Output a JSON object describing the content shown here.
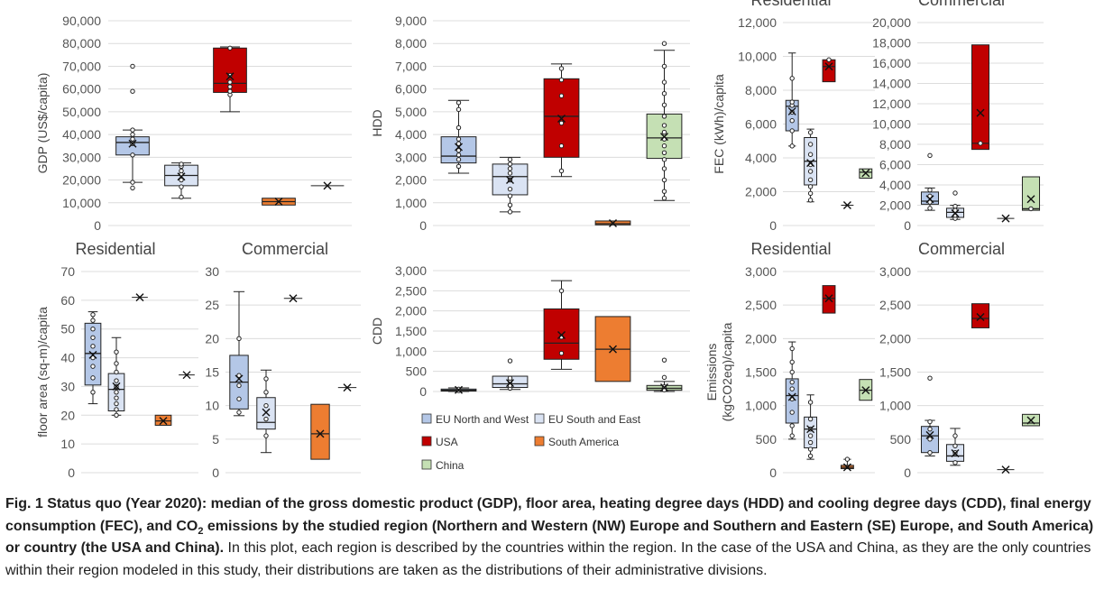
{
  "colors": {
    "EU_NW": "#b4c7e7",
    "EU_SE": "#dae3f3",
    "USA": "#c00000",
    "SA": "#ed7d31",
    "China": "#c5e0b4"
  },
  "legend": [
    {
      "key": "EU_NW",
      "label": "EU North and West"
    },
    {
      "key": "EU_SE",
      "label": "EU South and East"
    },
    {
      "key": "USA",
      "label": "USA"
    },
    {
      "key": "SA",
      "label": "South America"
    },
    {
      "key": "China",
      "label": "China"
    }
  ],
  "chart_data": [
    {
      "id": "gdp",
      "type": "box",
      "title": "",
      "ylabel": "GDP (US$/capita)",
      "yticks": [
        "0",
        "10,000",
        "20,000",
        "30,000",
        "40,000",
        "50,000",
        "60,000",
        "70,000",
        "80,000",
        "90,000"
      ],
      "ylim": [
        0,
        90000
      ],
      "series": [
        {
          "key": "EU_NW",
          "min": 19000,
          "q1": 31000,
          "median": 36500,
          "q3": 39000,
          "max": 42000,
          "mean": 36000,
          "points": [
            70000,
            59000,
            16500,
            19000,
            31000,
            36000,
            38000,
            40000,
            42000
          ]
        },
        {
          "key": "EU_SE",
          "min": 12000,
          "q1": 17500,
          "median": 22000,
          "q3": 26500,
          "max": 27500,
          "mean": 21500,
          "points": [
            12500,
            17000,
            20000,
            22500,
            24000,
            26000,
            27000
          ]
        },
        {
          "key": "USA",
          "min": 50000,
          "q1": 58500,
          "median": 62500,
          "q3": 78000,
          "max": 78500,
          "mean": 65500,
          "points": [
            57500,
            59000,
            61000,
            63000,
            66000,
            78000
          ]
        },
        {
          "key": "SA",
          "min": 9000,
          "q1": 9000,
          "median": 10500,
          "q3": 12000,
          "max": 12000,
          "mean": 10500,
          "points": []
        },
        {
          "key": "China",
          "single": true,
          "value": 17500,
          "mean": 17500,
          "points": []
        }
      ]
    },
    {
      "id": "hdd",
      "type": "box",
      "title": "",
      "ylabel": "HDD",
      "yticks": [
        "0",
        "1,000",
        "2,000",
        "3,000",
        "4,000",
        "5,000",
        "6,000",
        "7,000",
        "8,000",
        "9,000"
      ],
      "ylim": [
        0,
        9000
      ],
      "series": [
        {
          "key": "EU_NW",
          "min": 2300,
          "q1": 2750,
          "median": 3050,
          "q3": 3900,
          "max": 5500,
          "mean": 3450,
          "points": [
            2600,
            2900,
            3100,
            3300,
            3600,
            3800,
            4300,
            5100,
            5400
          ]
        },
        {
          "key": "EU_SE",
          "min": 600,
          "q1": 1350,
          "median": 2150,
          "q3": 2700,
          "max": 3000,
          "mean": 2000,
          "points": [
            600,
            900,
            1300,
            1600,
            2000,
            2300,
            2500,
            2700,
            2900
          ]
        },
        {
          "key": "USA",
          "min": 2150,
          "q1": 3000,
          "median": 4800,
          "q3": 6450,
          "max": 7100,
          "mean": 4700,
          "points": [
            2400,
            3500,
            4500,
            5700,
            6400,
            6900
          ]
        },
        {
          "key": "SA",
          "min": 30,
          "q1": 30,
          "median": 80,
          "q3": 200,
          "max": 200,
          "mean": 100,
          "points": []
        },
        {
          "key": "China",
          "min": 1100,
          "q1": 2950,
          "median": 3850,
          "q3": 4900,
          "max": 7700,
          "mean": 3900,
          "points": [
            1200,
            1500,
            2000,
            2500,
            2900,
            3200,
            3500,
            3800,
            4100,
            4400,
            4800,
            5300,
            5800,
            6300,
            7000,
            8000
          ]
        }
      ]
    },
    {
      "id": "fec_res",
      "type": "box",
      "title": "Residential",
      "ylabel": "FEC (kWh)/capita",
      "yticks": [
        "0",
        "2,000",
        "4,000",
        "6,000",
        "8,000",
        "10,000",
        "12,000"
      ],
      "ylim": [
        0,
        12000
      ],
      "series": [
        {
          "key": "EU_NW",
          "min": 4700,
          "q1": 5600,
          "median": 7050,
          "q3": 7400,
          "max": 10200,
          "mean": 6750,
          "points": [
            4700,
            5600,
            6200,
            6700,
            7100,
            7300,
            8700
          ]
        },
        {
          "key": "EU_SE",
          "min": 1400,
          "q1": 2400,
          "median": 3800,
          "q3": 5200,
          "max": 5700,
          "mean": 3700,
          "points": [
            1500,
            1900,
            2300,
            2700,
            3200,
            3600,
            4200,
            4800,
            5500
          ]
        },
        {
          "key": "USA",
          "min": 8500,
          "q1": 8500,
          "median": 9400,
          "q3": 9800,
          "max": 9800,
          "mean": 9400,
          "points": [
            9800
          ]
        },
        {
          "key": "SA",
          "single": true,
          "value": 1200,
          "mean": 1200,
          "points": []
        },
        {
          "key": "China",
          "min": 2800,
          "q1": 2800,
          "median": 3150,
          "q3": 3350,
          "max": 3350,
          "mean": 3100,
          "points": []
        }
      ]
    },
    {
      "id": "fec_com",
      "type": "box",
      "title": "Commercial",
      "ylabel": "",
      "yticks": [
        "0",
        "2,000",
        "4,000",
        "6,000",
        "8,000",
        "10,000",
        "12,000",
        "14,000",
        "16,000",
        "18,000",
        "20,000"
      ],
      "ylim": [
        0,
        20000
      ],
      "series": [
        {
          "key": "EU_NW",
          "min": 1500,
          "q1": 2100,
          "median": 2400,
          "q3": 3300,
          "max": 3700,
          "mean": 2600,
          "points": [
            6900,
            1700,
            2300,
            2900,
            3500
          ]
        },
        {
          "key": "EU_SE",
          "min": 600,
          "q1": 800,
          "median": 1300,
          "q3": 1700,
          "max": 2000,
          "mean": 1200,
          "points": [
            700,
            1000,
            1500,
            1900,
            3200
          ]
        },
        {
          "key": "USA",
          "min": 7500,
          "q1": 7500,
          "median": 8100,
          "q3": 17800,
          "max": 17800,
          "mean": 11100,
          "points": [
            8100
          ]
        },
        {
          "key": "SA",
          "single": true,
          "value": 700,
          "mean": 700,
          "points": []
        },
        {
          "key": "China",
          "min": 1500,
          "q1": 1500,
          "median": 1650,
          "q3": 4800,
          "max": 4800,
          "mean": 2600,
          "points": [
            1650
          ]
        }
      ]
    },
    {
      "id": "floor_res",
      "type": "box",
      "title": "Residential",
      "ylabel": "floor area (sq-m)/capita",
      "yticks": [
        "0",
        "10",
        "20",
        "30",
        "40",
        "50",
        "60",
        "70"
      ],
      "ylim": [
        0,
        70
      ],
      "series": [
        {
          "key": "EU_NW",
          "min": 24,
          "q1": 30.5,
          "median": 41.5,
          "q3": 52,
          "max": 56,
          "mean": 41,
          "points": [
            28,
            33,
            37,
            40,
            44,
            47,
            50,
            53,
            55
          ]
        },
        {
          "key": "EU_SE",
          "min": 20,
          "q1": 21.5,
          "median": 29,
          "q3": 34.5,
          "max": 47,
          "mean": 30,
          "points": [
            20,
            22,
            24,
            26,
            28,
            30,
            32,
            35,
            38,
            42
          ]
        },
        {
          "key": "USA",
          "single": true,
          "value": 61,
          "mean": 61,
          "points": []
        },
        {
          "key": "SA",
          "min": 16.5,
          "q1": 16.5,
          "median": 18,
          "q3": 20,
          "max": 20,
          "mean": 18,
          "points": []
        },
        {
          "key": "China",
          "single": true,
          "value": 34,
          "mean": 34,
          "points": []
        }
      ]
    },
    {
      "id": "floor_com",
      "type": "box",
      "title": "Commercial",
      "ylabel": "",
      "yticks": [
        "0",
        "5",
        "10",
        "15",
        "20",
        "25",
        "30"
      ],
      "ylim": [
        0,
        30
      ],
      "series": [
        {
          "key": "EU_NW",
          "min": 8.5,
          "q1": 9.5,
          "median": 13.5,
          "q3": 17.5,
          "max": 27,
          "mean": 14,
          "points": [
            9,
            11,
            13,
            14.5,
            20
          ]
        },
        {
          "key": "EU_SE",
          "min": 3,
          "q1": 6.5,
          "median": 7.5,
          "q3": 11.2,
          "max": 15.3,
          "mean": 9,
          "points": [
            5.5,
            8,
            10,
            12,
            14
          ]
        },
        {
          "key": "USA",
          "single": true,
          "value": 26,
          "mean": 26,
          "points": []
        },
        {
          "key": "SA",
          "min": 2,
          "q1": 2,
          "median": 5.8,
          "q3": 10.2,
          "max": 10.2,
          "mean": 5.8,
          "points": []
        },
        {
          "key": "China",
          "single": true,
          "value": 12.7,
          "mean": 12.7,
          "points": []
        }
      ]
    },
    {
      "id": "cdd",
      "type": "box",
      "title": "",
      "ylabel": "CDD",
      "yticks": [
        "0",
        "500",
        "1,000",
        "1,500",
        "2,000",
        "2,500",
        "3,000"
      ],
      "ylim": [
        0,
        3000
      ],
      "series": [
        {
          "key": "EU_NW",
          "min": 0,
          "q1": 10,
          "median": 30,
          "q3": 60,
          "max": 90,
          "mean": 40,
          "points": [
            20,
            60
          ]
        },
        {
          "key": "EU_SE",
          "min": 50,
          "q1": 100,
          "median": 190,
          "q3": 380,
          "max": 380,
          "mean": 210,
          "points": [
            80,
            150,
            250,
            330,
            760
          ]
        },
        {
          "key": "USA",
          "min": 550,
          "q1": 800,
          "median": 1200,
          "q3": 2050,
          "max": 2750,
          "mean": 1400,
          "points": [
            950,
            1350,
            2500
          ]
        },
        {
          "key": "SA",
          "min": 250,
          "q1": 250,
          "median": 1050,
          "q3": 1860,
          "max": 1860,
          "mean": 1050,
          "points": []
        },
        {
          "key": "China",
          "min": 0,
          "q1": 30,
          "median": 80,
          "q3": 150,
          "max": 250,
          "mean": 100,
          "points": [
            40,
            120,
            350,
            780
          ]
        }
      ]
    },
    {
      "id": "em_res",
      "type": "box",
      "title": "Residential",
      "ylabel": "Emissions (kgCO2eq)/capita",
      "yticks": [
        "0",
        "500",
        "1,000",
        "1,500",
        "2,000",
        "2,500",
        "3,000"
      ],
      "ylim": [
        0,
        3000
      ],
      "series": [
        {
          "key": "EU_NW",
          "min": 500,
          "q1": 740,
          "median": 1150,
          "q3": 1400,
          "max": 1950,
          "mean": 1130,
          "points": [
            550,
            700,
            900,
            1100,
            1250,
            1350,
            1500,
            1650,
            1850
          ]
        },
        {
          "key": "EU_SE",
          "min": 200,
          "q1": 370,
          "median": 650,
          "q3": 830,
          "max": 1160,
          "mean": 650,
          "points": [
            250,
            350,
            450,
            550,
            650,
            800,
            1050
          ]
        },
        {
          "key": "USA",
          "min": 2380,
          "q1": 2380,
          "median": 2600,
          "q3": 2790,
          "max": 2790,
          "mean": 2600,
          "points": []
        },
        {
          "key": "SA",
          "min": 60,
          "q1": 60,
          "median": 80,
          "q3": 110,
          "max": 200,
          "mean": 80,
          "points": [
            200
          ]
        },
        {
          "key": "China",
          "min": 1080,
          "q1": 1080,
          "median": 1230,
          "q3": 1390,
          "max": 1390,
          "mean": 1230,
          "points": []
        }
      ]
    },
    {
      "id": "em_com",
      "type": "box",
      "title": "Commercial",
      "ylabel": "",
      "yticks": [
        "0",
        "500",
        "1,000",
        "1,500",
        "2,000",
        "2,500",
        "3,000"
      ],
      "ylim": [
        0,
        3000
      ],
      "series": [
        {
          "key": "EU_NW",
          "min": 250,
          "q1": 300,
          "median": 550,
          "q3": 690,
          "max": 780,
          "mean": 560,
          "points": [
            1410,
            300,
            500,
            650,
            760
          ]
        },
        {
          "key": "EU_SE",
          "min": 110,
          "q1": 170,
          "median": 250,
          "q3": 420,
          "max": 660,
          "mean": 290,
          "points": [
            150,
            300,
            400,
            550
          ]
        },
        {
          "key": "USA",
          "min": 2160,
          "q1": 2160,
          "median": 2300,
          "q3": 2520,
          "max": 2520,
          "mean": 2320,
          "points": []
        },
        {
          "key": "SA",
          "single": true,
          "value": 45,
          "mean": 45,
          "points": []
        },
        {
          "key": "China",
          "min": 700,
          "q1": 700,
          "median": 740,
          "q3": 870,
          "max": 870,
          "mean": 780,
          "points": []
        }
      ]
    }
  ],
  "caption": {
    "bold_a": "Fig. 1 Status quo (Year 2020): median of the gross domestic product (GDP), floor area, heating degree days (HDD) and cooling degree days (CDD), final energy consumption (FEC), and CO",
    "bold_sub": "2",
    "bold_b": " emissions by the studied region (Northern and Western (NW) Europe and Southern and Eastern (SE) Europe, and South America) or country (the USA and China).",
    "text": " In this plot, each region is described by the countries within the region. In the case of the USA and China, as they are the only countries within their region modeled in this study, their distributions are taken as the distributions of their administrative divisions."
  }
}
